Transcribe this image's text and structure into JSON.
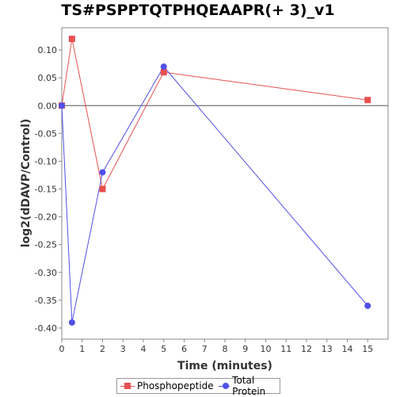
{
  "chart_data": {
    "type": "line",
    "title": "TS#PSPPTQTPHQEAAPR(+ 3)_v1",
    "xlabel": "Time (minutes)",
    "ylabel": "log2(dDAVP/Control)",
    "xlim": [
      0,
      16
    ],
    "ylim": [
      -0.42,
      0.14
    ],
    "x_ticks": [
      0,
      1,
      2,
      3,
      4,
      5,
      6,
      7,
      8,
      9,
      10,
      11,
      12,
      13,
      14,
      15
    ],
    "y_ticks": [
      0.1,
      0.05,
      0.0,
      -0.05,
      -0.1,
      -0.15,
      -0.2,
      -0.25,
      -0.3,
      -0.35,
      -0.4
    ],
    "y_tick_labels": [
      "0.10",
      "0.05",
      "0.00",
      "-0.05",
      "-0.10",
      "-0.15",
      "-0.20",
      "-0.25",
      "-0.30",
      "-0.35",
      "-0.40"
    ],
    "zero_line": true,
    "grid": false,
    "legend_position": "bottom",
    "series": [
      {
        "name": "Phosphopeptide",
        "color": "#e85050",
        "marker": "square",
        "x": [
          0,
          0.5,
          2,
          5,
          15
        ],
        "y": [
          0.0,
          0.12,
          -0.15,
          0.06,
          0.01
        ]
      },
      {
        "name": "Total Protein",
        "color": "#5050e8",
        "marker": "circle",
        "x": [
          0,
          0.5,
          2,
          5,
          15
        ],
        "y": [
          0.0,
          -0.39,
          -0.12,
          0.07,
          -0.36
        ]
      }
    ]
  }
}
